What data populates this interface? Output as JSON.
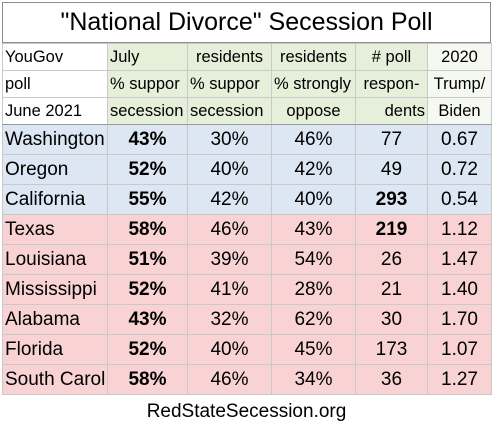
{
  "title": "\"National Divorce\" Secession Poll",
  "header": {
    "col0": [
      "YouGov",
      "poll",
      "June 2021"
    ],
    "col1": [
      "July",
      "% suppor",
      "secession"
    ],
    "col2": [
      "residents",
      "% suppor",
      "secession"
    ],
    "col3": [
      "residents",
      "% strongly",
      "oppose"
    ],
    "col4": [
      "# poll",
      "respon-",
      "dents"
    ],
    "col5": [
      "2020",
      "Trump/",
      "Biden"
    ]
  },
  "rows": [
    {
      "state": "Washington",
      "july": "43%",
      "residents_support": "30%",
      "strongly_oppose": "46%",
      "respondents": "77",
      "ratio": "0.67",
      "region": "blue",
      "bold_respondents": false
    },
    {
      "state": "Oregon",
      "july": "52%",
      "residents_support": "40%",
      "strongly_oppose": "42%",
      "respondents": "49",
      "ratio": "0.72",
      "region": "blue",
      "bold_respondents": false
    },
    {
      "state": "California",
      "july": "55%",
      "residents_support": "42%",
      "strongly_oppose": "40%",
      "respondents": "293",
      "ratio": "0.54",
      "region": "blue",
      "bold_respondents": true
    },
    {
      "state": "Texas",
      "july": "58%",
      "residents_support": "46%",
      "strongly_oppose": "43%",
      "respondents": "219",
      "ratio": "1.12",
      "region": "red",
      "bold_respondents": true
    },
    {
      "state": "Louisiana",
      "july": "51%",
      "residents_support": "39%",
      "strongly_oppose": "54%",
      "respondents": "26",
      "ratio": "1.47",
      "region": "red",
      "bold_respondents": false
    },
    {
      "state": "Mississippi",
      "july": "52%",
      "residents_support": "41%",
      "strongly_oppose": "28%",
      "respondents": "21",
      "ratio": "1.40",
      "region": "red",
      "bold_respondents": false
    },
    {
      "state": "Alabama",
      "july": "43%",
      "residents_support": "32%",
      "strongly_oppose": "62%",
      "respondents": "30",
      "ratio": "1.70",
      "region": "red",
      "bold_respondents": false
    },
    {
      "state": "Florida",
      "july": "52%",
      "residents_support": "40%",
      "strongly_oppose": "45%",
      "respondents": "173",
      "ratio": "1.07",
      "region": "red",
      "bold_respondents": false
    },
    {
      "state": "South Carol",
      "july": "58%",
      "residents_support": "46%",
      "strongly_oppose": "34%",
      "respondents": "36",
      "ratio": "1.27",
      "region": "red",
      "bold_respondents": false
    }
  ],
  "footer": "RedStateSecession.org",
  "colors": {
    "blue_region": "#dce7f3",
    "red_region": "#f9d3d3",
    "header_green": "#e6efd9"
  }
}
